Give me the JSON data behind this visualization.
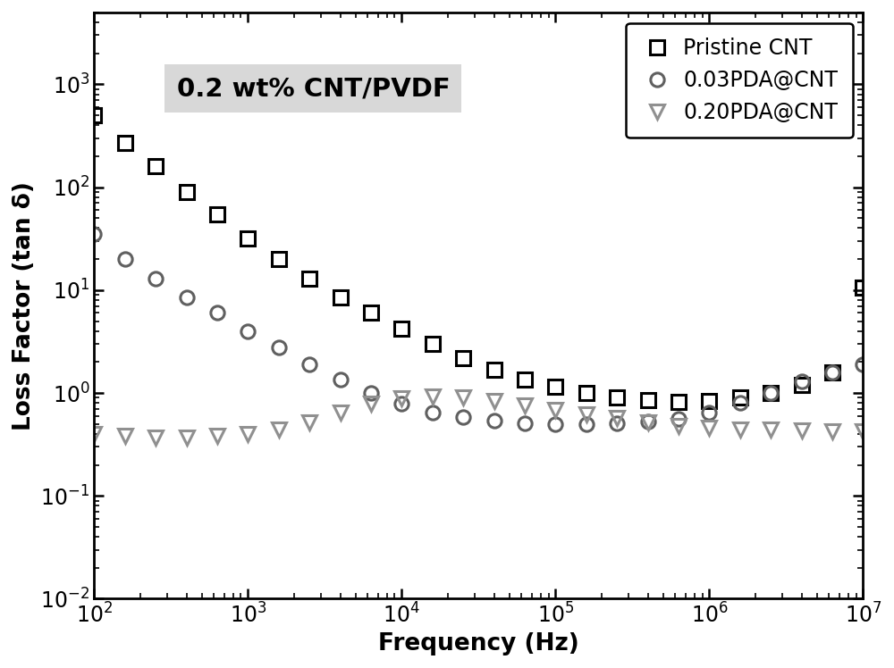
{
  "title": "0.2 wt% CNT/PVDF",
  "xlabel": "Frequency (Hz)",
  "ylabel": "Loss Factor (tan δ)",
  "xlim": [
    100,
    10000000.0
  ],
  "ylim": [
    0.01,
    5000
  ],
  "background_color": "#ffffff",
  "legend_labels": [
    "Pristine CNT",
    "0.03PDA@CNT",
    "0.20PDA@CNT"
  ],
  "legend_markers": [
    "s",
    "o",
    "v"
  ],
  "legend_colors": [
    "#000000",
    "#606060",
    "#909090"
  ],
  "series1_freq": [
    100,
    160,
    250,
    400,
    630,
    1000,
    1600,
    2500,
    4000,
    6300,
    10000,
    16000,
    25000,
    40000,
    63000,
    100000,
    160000,
    250000,
    400000,
    630000,
    1000000,
    1600000,
    2500000,
    4000000,
    6300000,
    10000000
  ],
  "series1_val": [
    500,
    270,
    160,
    90,
    55,
    32,
    20,
    13,
    8.5,
    6.0,
    4.2,
    3.0,
    2.2,
    1.7,
    1.35,
    1.15,
    1.0,
    0.9,
    0.85,
    0.82,
    0.83,
    0.9,
    1.0,
    1.2,
    1.6,
    10.5
  ],
  "series2_freq": [
    100,
    160,
    250,
    400,
    630,
    1000,
    1600,
    2500,
    4000,
    6300,
    10000,
    16000,
    25000,
    40000,
    63000,
    100000,
    160000,
    250000,
    400000,
    630000,
    1000000,
    1600000,
    2500000,
    4000000,
    6300000,
    10000000
  ],
  "series2_val": [
    35,
    20,
    13,
    8.5,
    6.0,
    4.0,
    2.8,
    1.9,
    1.35,
    1.0,
    0.78,
    0.65,
    0.58,
    0.54,
    0.51,
    0.5,
    0.5,
    0.51,
    0.53,
    0.56,
    0.65,
    0.8,
    1.0,
    1.3,
    1.6,
    1.9
  ],
  "series3_freq": [
    100,
    160,
    250,
    400,
    630,
    1000,
    1600,
    2500,
    4000,
    6300,
    10000,
    16000,
    25000,
    40000,
    63000,
    100000,
    160000,
    250000,
    400000,
    630000,
    1000000,
    1600000,
    2500000,
    4000000,
    6300000,
    10000000
  ],
  "series3_val": [
    0.4,
    0.38,
    0.37,
    0.37,
    0.38,
    0.4,
    0.44,
    0.52,
    0.65,
    0.78,
    0.88,
    0.92,
    0.9,
    0.83,
    0.75,
    0.68,
    0.62,
    0.57,
    0.52,
    0.48,
    0.46,
    0.44,
    0.44,
    0.43,
    0.42,
    0.42
  ],
  "marker_size": 11,
  "title_fontsize": 21,
  "label_fontsize": 19,
  "tick_fontsize": 17,
  "legend_fontsize": 17,
  "title_box_color": "#d8d8d8"
}
